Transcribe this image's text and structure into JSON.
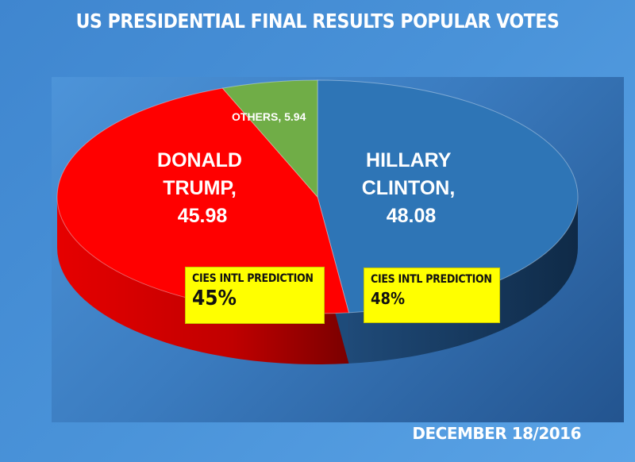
{
  "chart_data": {
    "type": "pie",
    "title": "US PRESIDENTIAL FINAL RESULTS POPULAR VOTES",
    "three_d": true,
    "slices": [
      {
        "label": "HILLARY CLINTON",
        "value": 48.08,
        "color": "#2e75b6",
        "side_color": "#1f4e79"
      },
      {
        "label": "DONALD TRUMP",
        "value": 45.98,
        "color": "#ff0000",
        "side_color": "#a30000"
      },
      {
        "label": "OTHERS",
        "value": 5.94,
        "color": "#70ad47",
        "side_color": "#4e7a31"
      }
    ],
    "data_labels": {
      "clinton": [
        "HILLARY",
        "CLINTON,",
        "48.08"
      ],
      "trump": [
        "DONALD",
        "TRUMP,",
        "45.98"
      ],
      "others": "OTHERS, 5.94"
    }
  },
  "predictions": [
    {
      "title": "CIES INTL PREDICTION",
      "value": "45%"
    },
    {
      "title": "CIES INTL PREDICTION",
      "value": "48%"
    }
  ],
  "date": "DECEMBER 18/2016",
  "colors": {
    "background": "#4a93d9",
    "prediction_box": "#ffff00",
    "label_text": "#ffffff"
  }
}
